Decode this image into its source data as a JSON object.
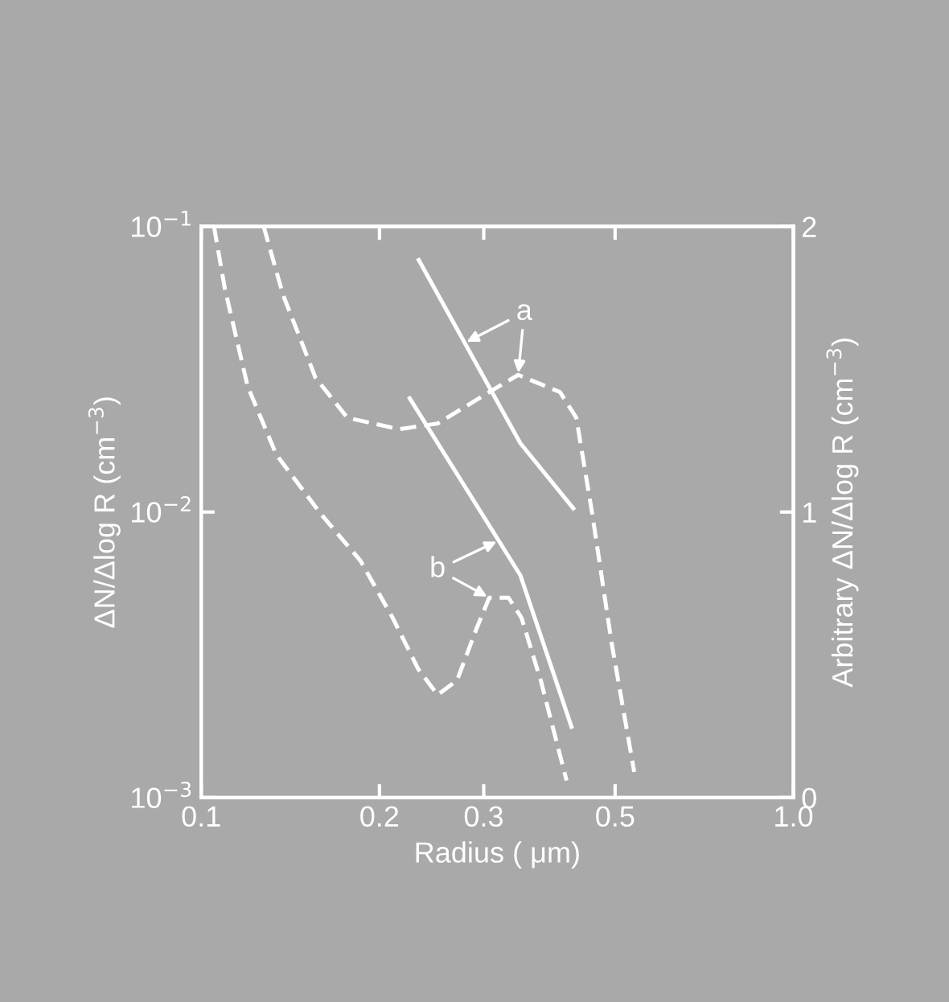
{
  "chart_data": {
    "type": "line",
    "xlabel": "Radius ( μm)",
    "ylabel": "ΔN/Δlog R (cm$^{−3}$)",
    "y2label": "Arbitrary ΔN/Δlog R (cm$^{−3}$)",
    "log": "xy",
    "grid": false,
    "marker": "none",
    "xlim": [
      0.1,
      1.0
    ],
    "xticks": [
      0.1,
      0.2,
      0.3,
      0.5,
      {
        "value": 1.0,
        "label": "1.0"
      }
    ],
    "ylim": [
      0.001,
      0.1
    ],
    "yticks": [
      {
        "value": 0.001,
        "label": "10$^{−3}$"
      },
      {
        "value": 0.01,
        "label": "10$^{−2}$"
      },
      {
        "value": 0.1,
        "label": "10$^{−1}$"
      }
    ],
    "y2lim": [
      0,
      2
    ],
    "y2ticks": [
      0,
      1,
      2
    ],
    "series": [
      {
        "color": "#ffffff",
        "line_style": "solid",
        "x": [
          0.233,
          0.346,
          0.425
        ],
        "values": [
          0.0763,
          0.0174,
          0.0103
        ]
      },
      {
        "color": "#ffffff",
        "line_style": "solid",
        "x": [
          0.225,
          0.346,
          0.422
        ],
        "values": [
          0.025,
          0.006,
          0.00177
        ]
      },
      {
        "color": "#ffffff",
        "line_style": "dashed",
        "axis": "y2",
        "x": [
          0.1275,
          0.1375,
          0.156,
          0.1766,
          0.216,
          0.2508,
          0.3065,
          0.343,
          0.4036,
          0.43,
          0.4578,
          0.4934,
          0.5386
        ],
        "values": [
          2,
          1.76,
          1.47,
          1.33,
          1.29,
          1.31,
          1.42,
          1.48,
          1.42,
          1.33,
          0.99,
          0.54,
          0.09
        ]
      },
      {
        "color": "#ffffff",
        "line_style": "dashed",
        "axis": "y2",
        "x": [
          0.1051,
          0.1097,
          0.1198,
          0.134,
          0.1597,
          0.1857,
          0.2105,
          0.2326,
          0.2508,
          0.2704,
          0.2915,
          0.3065,
          0.3304,
          0.3474,
          0.3745,
          0.414
        ],
        "values": [
          2,
          1.78,
          1.44,
          1.2,
          0.99,
          0.83,
          0.63,
          0.45,
          0.36,
          0.41,
          0.59,
          0.7,
          0.7,
          0.63,
          0.41,
          0.06
        ]
      }
    ],
    "annotations": [
      {
        "text": "a",
        "x": 0.2786,
        "y": 0.0391
      },
      {
        "text": "b",
        "x": 0.318,
        "y": 0.00794
      }
    ]
  }
}
